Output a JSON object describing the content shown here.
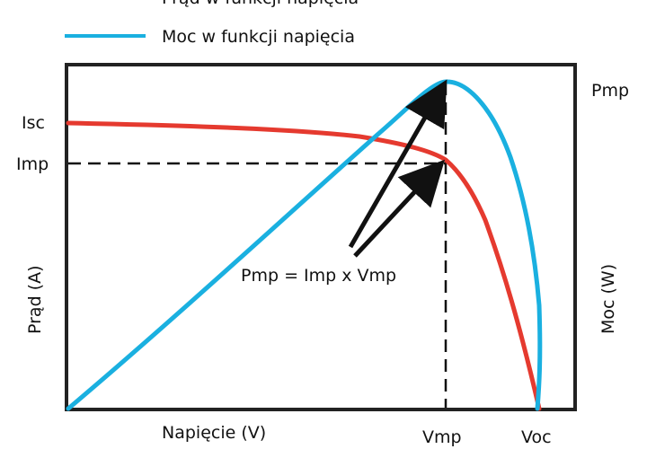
{
  "legend": [
    {
      "label": "Prąd w funkcji napięcia",
      "color": "#e53a2f"
    },
    {
      "label": "Moc w funkcji napięcia",
      "color": "#1ab0e0"
    }
  ],
  "axes": {
    "x_label": "Napięcie (V)",
    "y_left_label": "Prąd (A)",
    "y_right_label": "Moc (W)"
  },
  "ticks": {
    "isc": "Isc",
    "imp": "Imp",
    "pmp": "Pmp",
    "vmp": "Vmp",
    "voc": "Voc"
  },
  "annotation": {
    "formula": "Pmp = Imp x Vmp"
  },
  "chart_data": {
    "type": "line",
    "title": "",
    "xlabel": "Napięcie (V)",
    "ylabel": "Prąd (A)",
    "y2label": "Moc (W)",
    "x_ticks": [
      "Vmp",
      "Voc"
    ],
    "y_ticks_left": [
      "Isc",
      "Imp"
    ],
    "y_ticks_right": [
      "Pmp"
    ],
    "series": [
      {
        "name": "Prąd w funkcji napięcia",
        "color": "#e53a2f",
        "x": [
          0,
          0.2,
          0.4,
          0.6,
          0.7,
          0.76,
          0.8,
          0.84,
          0.88,
          0.92,
          0.96,
          1.0
        ],
        "y": [
          1.0,
          0.992,
          0.98,
          0.955,
          0.92,
          0.88,
          0.83,
          0.72,
          0.55,
          0.34,
          0.14,
          0.0
        ]
      },
      {
        "name": "Moc w funkcji napięcia",
        "color": "#1ab0e0",
        "x": [
          0,
          0.2,
          0.4,
          0.6,
          0.7,
          0.76,
          0.8,
          0.84,
          0.88,
          0.92,
          0.96,
          1.0
        ],
        "y": [
          0,
          0.25,
          0.49,
          0.72,
          0.84,
          0.95,
          1.0,
          0.93,
          0.74,
          0.48,
          0.2,
          0.0
        ]
      }
    ],
    "grid": false,
    "legend_position": "top-left"
  }
}
